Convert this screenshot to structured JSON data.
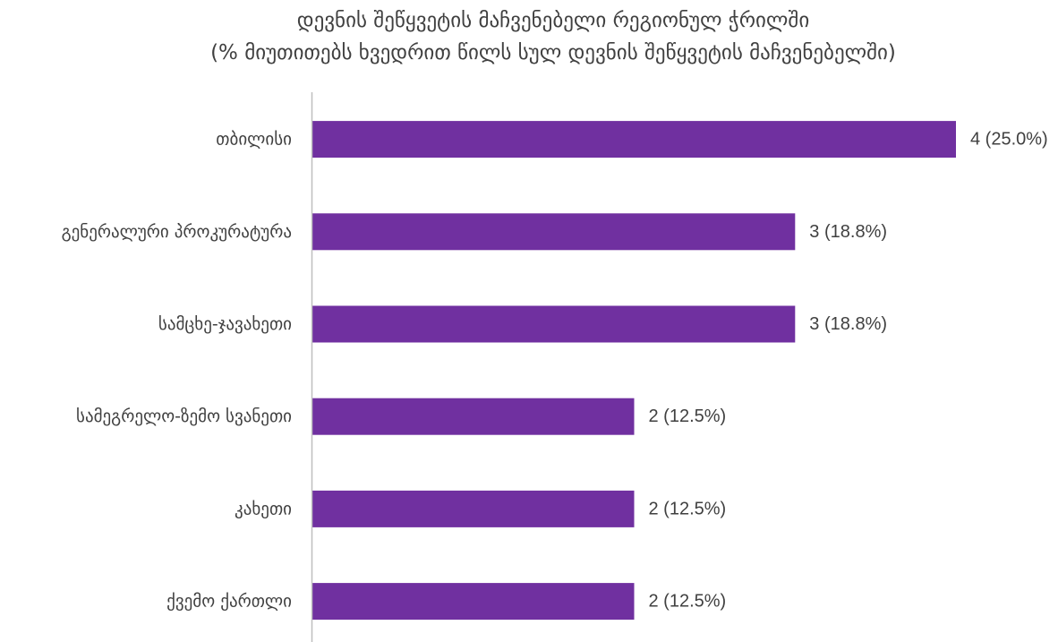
{
  "chart_data": {
    "type": "bar",
    "orientation": "horizontal",
    "title": "დევნის შეწყვეტის მაჩვენებელი რეგიონულ ჭრილში",
    "subtitle": "(% მიუთითებს ხვედრით წილს სულ დევნის შეწყვეტის მაჩვენებელში)",
    "categories": [
      "თბილისი",
      "გენერალური პროკურატურა",
      "სამცხე-ჯავახეთი",
      "სამეგრელო-ზემო სვანეთი",
      "კახეთი",
      "ქვემო ქართლი"
    ],
    "values": [
      4,
      3,
      3,
      2,
      2,
      2
    ],
    "data_labels": [
      "4 (25.0%)",
      "3 (18.8%)",
      "3 (18.8%)",
      "2 (12.5%)",
      "2 (12.5%)",
      "2 (12.5%)"
    ],
    "xlim": [
      0,
      4
    ],
    "grid": false,
    "legend": false,
    "colors": {
      "bar": "#7030A0",
      "text": "#404040",
      "axis": "#BFBFBF"
    }
  }
}
